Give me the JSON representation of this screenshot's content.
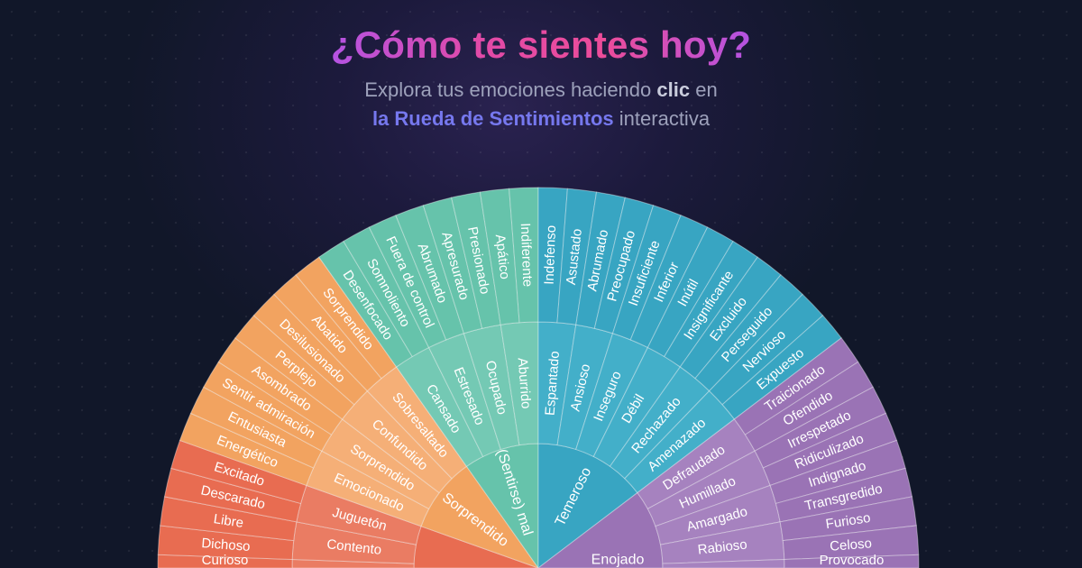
{
  "header": {
    "title": "¿Cómo te sientes hoy?",
    "subtitle_part1": "Explora tus emociones haciendo ",
    "subtitle_bold": "clic",
    "subtitle_part2": " en",
    "subtitle_link": "la Rueda de Sentimientos",
    "subtitle_part3": " interactiva",
    "title_gradient": [
      "#b453e2",
      "#ec4c9a"
    ],
    "link_color": "#7678ee"
  },
  "wheel": {
    "categories": [
      {
        "label": "",
        "color": "#e86c51",
        "middle_color": "#ea7c63",
        "middle": [
          {
            "label": "",
            "leaves": [
              "Curioso"
            ]
          },
          {
            "label": "Contento",
            "leaves": [
              "Dichoso",
              "Libre"
            ]
          },
          {
            "label": "Juguetón",
            "leaves": [
              "Descarado",
              "Excitado"
            ]
          }
        ]
      },
      {
        "label": "Sorprendido",
        "color": "#f2a360",
        "middle_color": "#f5af77",
        "middle": [
          {
            "label": "Emocionado",
            "leaves": [
              "Energético",
              "Entusiasta"
            ]
          },
          {
            "label": "Sorprendido",
            "leaves": [
              "Sentir admiración",
              "Asombrado"
            ]
          },
          {
            "label": "Confundido",
            "leaves": [
              "Perplejo",
              "Desilusionado"
            ]
          },
          {
            "label": "Sobresaltado",
            "leaves": [
              "Abatido",
              "Sorprendido"
            ]
          }
        ]
      },
      {
        "label": "(Sentirse) mal",
        "color": "#66c3ab",
        "middle_color": "#74c9b4",
        "middle": [
          {
            "label": "Cansado",
            "leaves": [
              "Desenfocado",
              "Somnoliento"
            ]
          },
          {
            "label": "Estresado",
            "leaves": [
              "Fuera de control",
              "Abrumado"
            ]
          },
          {
            "label": "Ocupado",
            "leaves": [
              "Apresurado",
              "Presionado"
            ]
          },
          {
            "label": "Aburrido",
            "leaves": [
              "Apático",
              "Indiferente"
            ]
          }
        ]
      },
      {
        "label": "Temeroso",
        "color": "#38a5c2",
        "middle_color": "#43afc9",
        "middle": [
          {
            "label": "Espantado",
            "leaves": [
              "Indefenso",
              "Asustado"
            ]
          },
          {
            "label": "Ansioso",
            "leaves": [
              "Abrumado",
              "Preocupado"
            ]
          },
          {
            "label": "Inseguro",
            "leaves": [
              "Insuficiente",
              "Inferior"
            ]
          },
          {
            "label": "Débil",
            "leaves": [
              "Inútil",
              "Insignificante"
            ]
          },
          {
            "label": "Rechazado",
            "leaves": [
              "Excluido",
              "Perseguido"
            ]
          },
          {
            "label": "Amenazado",
            "leaves": [
              "Nervioso",
              "Expuesto"
            ]
          }
        ]
      },
      {
        "label": "Enojado",
        "color": "#9a73b5",
        "middle_color": "#a682bf",
        "middle": [
          {
            "label": "Defraudado",
            "leaves": [
              "Traicionado",
              "Ofendido"
            ]
          },
          {
            "label": "Humillado",
            "leaves": [
              "Irrespetado",
              "Ridiculizado"
            ]
          },
          {
            "label": "Amargado",
            "leaves": [
              "Indignado",
              "Transgredido"
            ]
          },
          {
            "label": "Rabioso",
            "leaves": [
              "Furioso",
              "Celoso"
            ]
          },
          {
            "label": "",
            "leaves": [
              "Provocado"
            ]
          }
        ]
      }
    ]
  }
}
